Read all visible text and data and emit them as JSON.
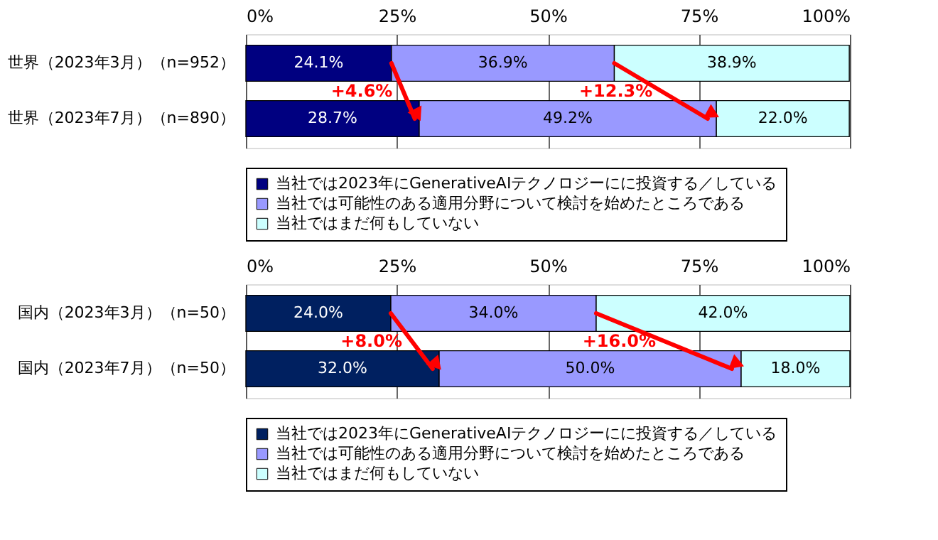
{
  "chart_data": [
    {
      "type": "bar",
      "orientation": "horizontal",
      "stacked": true,
      "categories": [
        "世界（2023年3月）（n=952）",
        "世界（2023年7月）（n=890）"
      ],
      "series": [
        {
          "name": "当社では2023年にGenerativeAIテクノロジーにに投資する／している",
          "color": "#000080",
          "values": [
            24.1,
            28.7
          ],
          "value_labels": [
            "24.1%",
            "28.7%"
          ]
        },
        {
          "name": "当社では可能性のある適用分野について検討を始めたところである",
          "color": "#9999ff",
          "values": [
            36.9,
            49.2
          ],
          "value_labels": [
            "36.9%",
            "49.2%"
          ]
        },
        {
          "name": "当社ではまだ何もしていない",
          "color": "#ccffff",
          "values": [
            38.9,
            22.0
          ],
          "value_labels": [
            "38.9%",
            "22.0%"
          ]
        }
      ],
      "xlim": [
        0,
        100
      ],
      "xticks": [
        {
          "value": 0,
          "label": "0%"
        },
        {
          "value": 25,
          "label": "25%"
        },
        {
          "value": 50,
          "label": "50%"
        },
        {
          "value": 75,
          "label": "75%"
        },
        {
          "value": 100,
          "label": "100%"
        }
      ],
      "grid": "x",
      "legend": "bottom",
      "annotations": [
        {
          "text": "+4.6%",
          "x": 28.7,
          "y": "世界（2023年7月）（n=890）"
        },
        {
          "text": "+12.3%",
          "x": 77.9,
          "y": "世界（2023年7月）（n=890）"
        }
      ]
    },
    {
      "type": "bar",
      "orientation": "horizontal",
      "stacked": true,
      "categories": [
        "国内（2023年3月）（n=50）",
        "国内（2023年7月）（n=50）"
      ],
      "series": [
        {
          "name": "当社では2023年にGenerativeAIテクノロジーにに投資する／している",
          "color": "#002060",
          "values": [
            24.0,
            32.0
          ],
          "value_labels": [
            "24.0%",
            "32.0%"
          ]
        },
        {
          "name": "当社では可能性のある適用分野について検討を始めたところである",
          "color": "#9999ff",
          "values": [
            34.0,
            50.0
          ],
          "value_labels": [
            "34.0%",
            "50.0%"
          ]
        },
        {
          "name": "当社ではまだ何もしていない",
          "color": "#ccffff",
          "values": [
            42.0,
            18.0
          ],
          "value_labels": [
            "42.0%",
            "18.0%"
          ]
        }
      ],
      "xlim": [
        0,
        100
      ],
      "xticks": [
        {
          "value": 0,
          "label": "0%"
        },
        {
          "value": 25,
          "label": "25%"
        },
        {
          "value": 50,
          "label": "50%"
        },
        {
          "value": 75,
          "label": "75%"
        },
        {
          "value": 100,
          "label": "100%"
        }
      ],
      "grid": "x",
      "legend": "bottom",
      "annotations": [
        {
          "text": "+8.0%",
          "x": 32.0,
          "y": "国内（2023年7月）（n=50）"
        },
        {
          "text": "+16.0%",
          "x": 82.0,
          "y": "国内（2023年7月）（n=50）"
        }
      ]
    }
  ]
}
